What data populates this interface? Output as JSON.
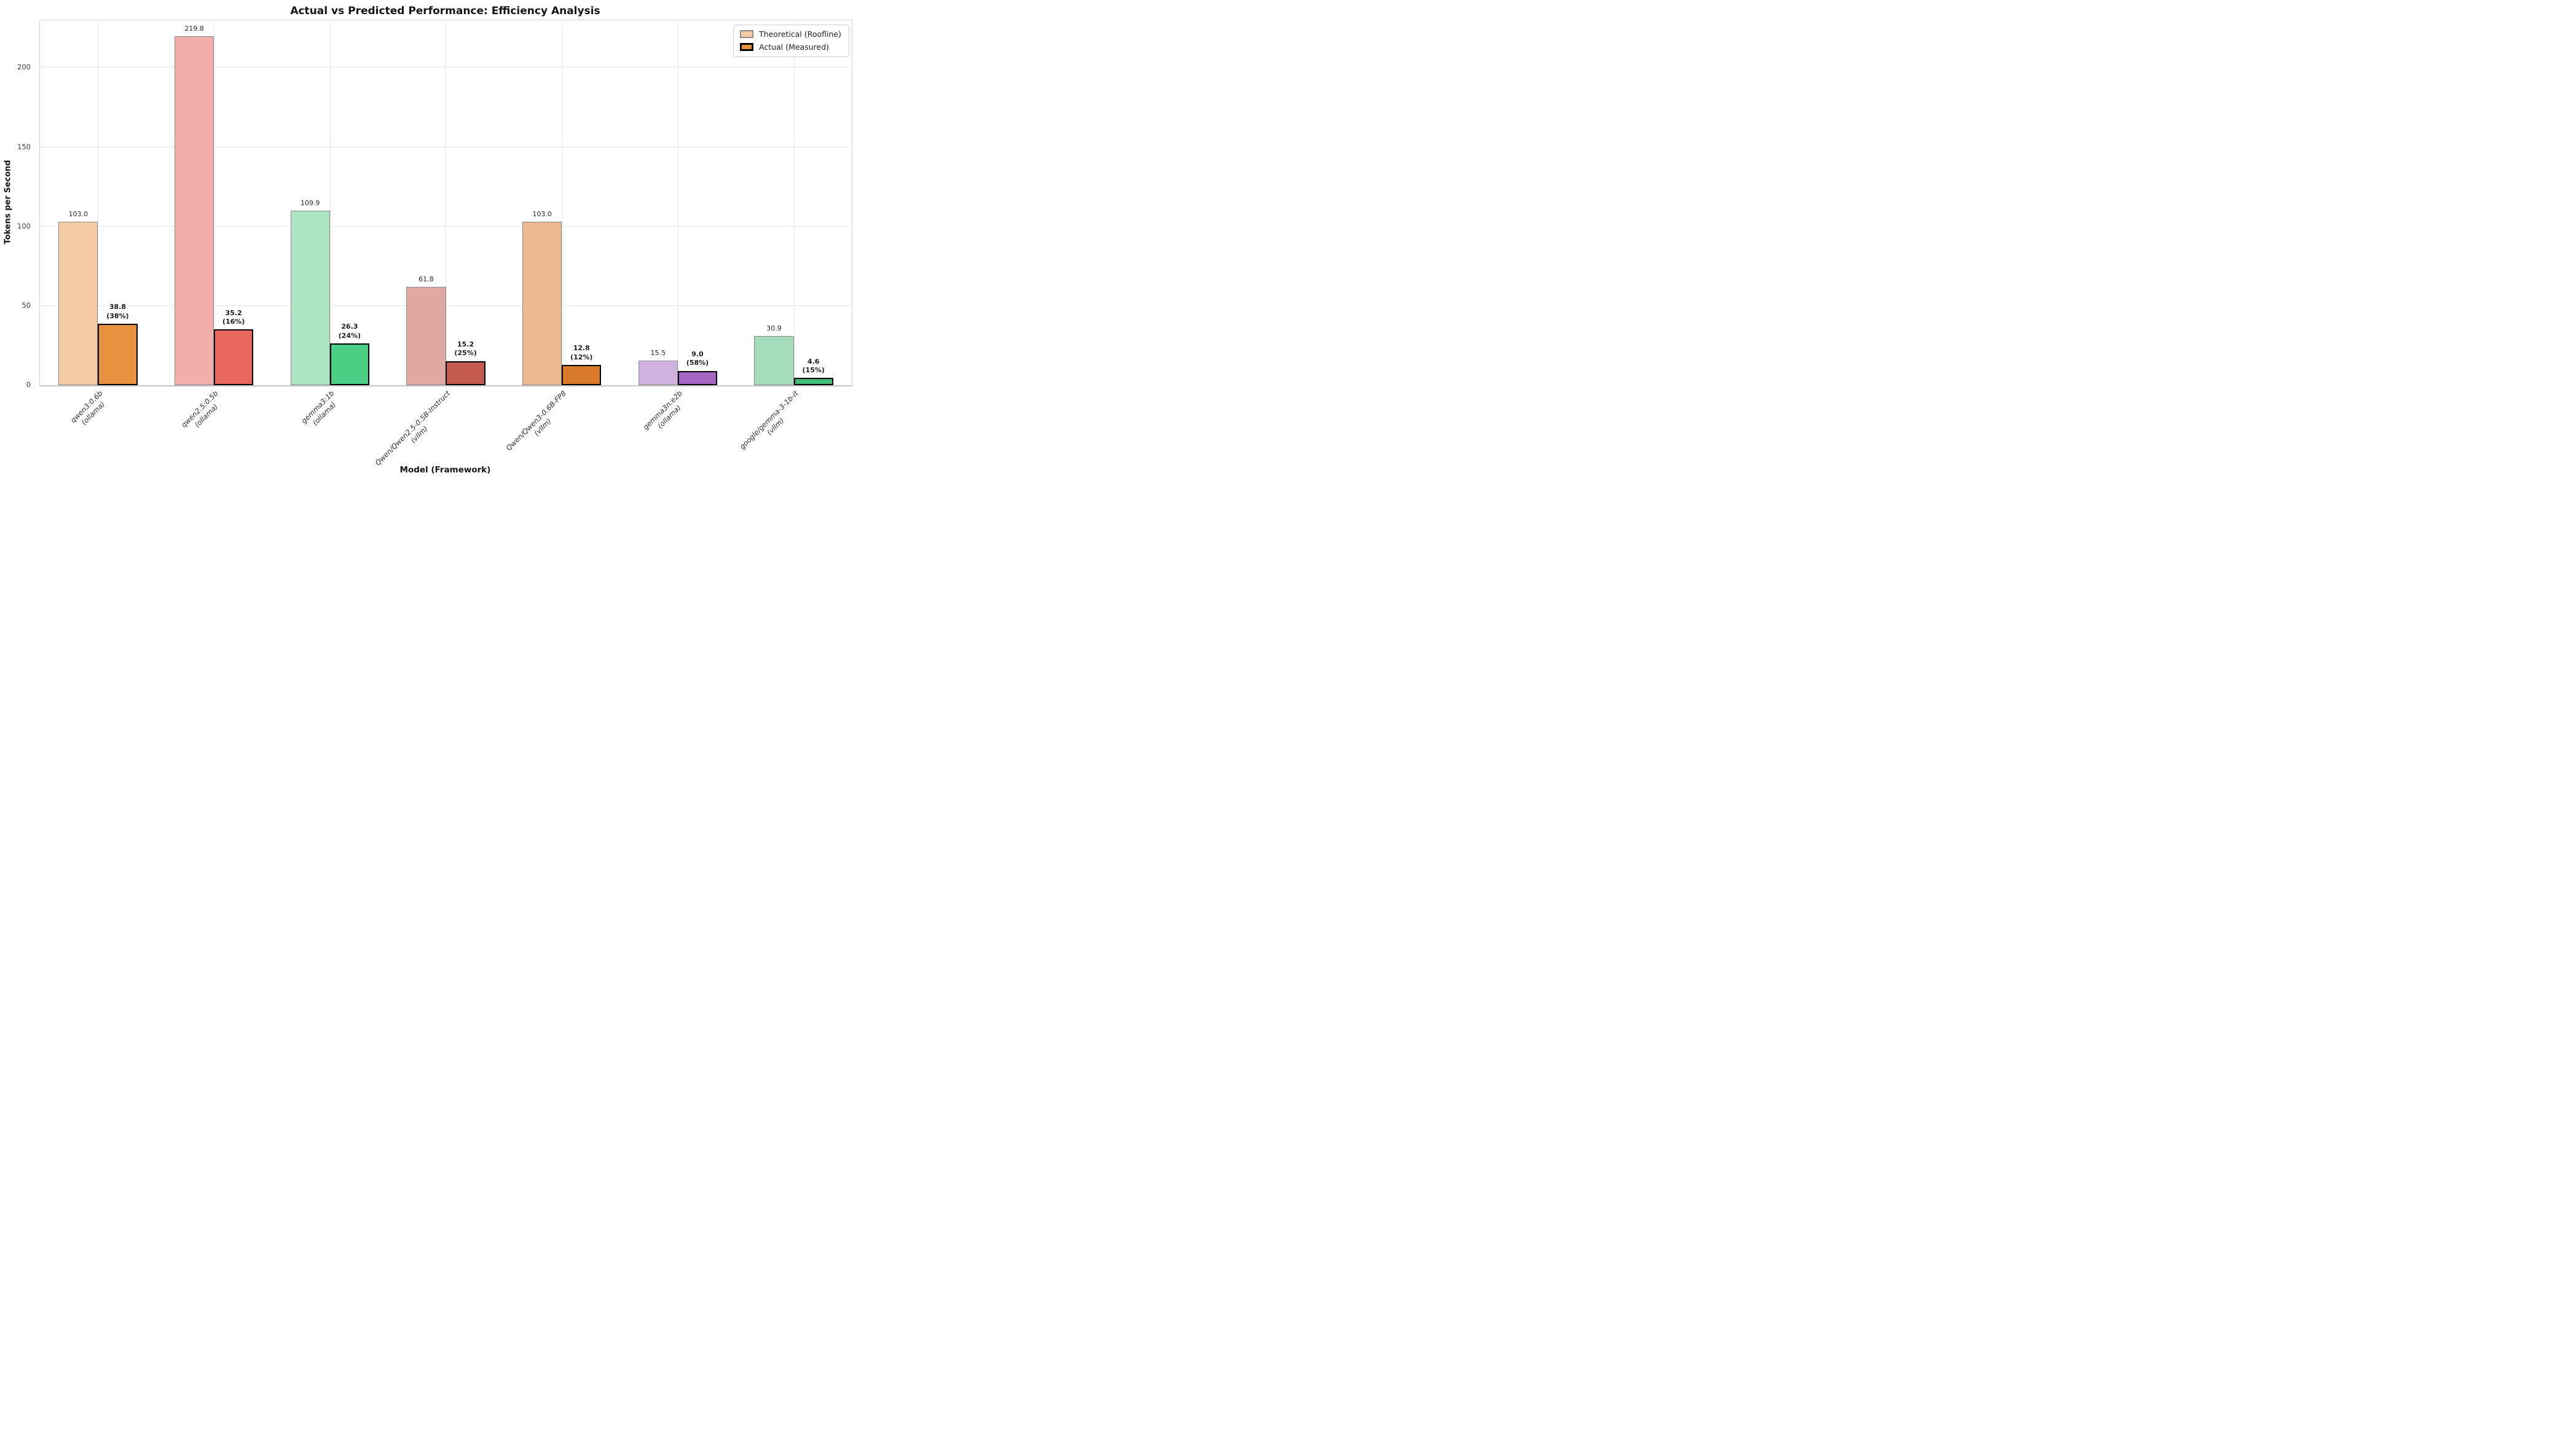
{
  "chart_data": {
    "type": "bar",
    "title": "Actual vs Predicted Performance: Efficiency Analysis",
    "xlabel": "Model (Framework)",
    "ylabel": "Tokens per Second",
    "ylim": [
      0,
      230
    ],
    "yticks": [
      0,
      50,
      100,
      150,
      200
    ],
    "grid": true,
    "legend_position": "upper right",
    "legend": {
      "theoretical_label": "Theoretical (Roofline)",
      "actual_label": "Actual (Measured)"
    },
    "series": [
      {
        "name": "Theoretical (Roofline)",
        "values": [
          103.0,
          219.8,
          109.9,
          61.8,
          103.0,
          15.5,
          30.9
        ]
      },
      {
        "name": "Actual (Measured)",
        "values": [
          38.8,
          35.2,
          26.3,
          15.2,
          12.8,
          9.0,
          4.6
        ]
      }
    ],
    "groups": [
      {
        "model": "qwen3:0.6b",
        "framework": "(ollama)",
        "theoretical": 103.0,
        "theoretical_label": "103.0",
        "actual": 38.8,
        "actual_label": "38.8",
        "efficiency_label": "(38%)",
        "theo_color": "#F5CBA4",
        "actual_color": "#E8913F"
      },
      {
        "model": "qwen2.5:0.5b",
        "framework": "(ollama)",
        "theoretical": 219.8,
        "theoretical_label": "219.8",
        "actual": 35.2,
        "actual_label": "35.2",
        "efficiency_label": "(16%)",
        "theo_color": "#F2AFA9",
        "actual_color": "#E8695C"
      },
      {
        "model": "gemma3:1b",
        "framework": "(ollama)",
        "theoretical": 109.9,
        "theoretical_label": "109.9",
        "actual": 26.3,
        "actual_label": "26.3",
        "efficiency_label": "(24%)",
        "theo_color": "#ABE5C3",
        "actual_color": "#4ACF85"
      },
      {
        "model": "Qwen/Qwen2.5-0.5B-Instruct",
        "framework": "(vllm)",
        "theoretical": 61.8,
        "theoretical_label": "61.8",
        "actual": 15.2,
        "actual_label": "15.2",
        "efficiency_label": "(25%)",
        "theo_color": "#DFA8A3",
        "actual_color": "#C45B51"
      },
      {
        "model": "Qwen/Qwen3-0.6B-FP8",
        "framework": "(vllm)",
        "theoretical": 103.0,
        "theoretical_label": "103.0",
        "actual": 12.8,
        "actual_label": "12.8",
        "efficiency_label": "(12%)",
        "theo_color": "#EBB88F",
        "actual_color": "#D97A2B"
      },
      {
        "model": "gemma3n:e2b",
        "framework": "(ollama)",
        "theoretical": 15.5,
        "theoretical_label": "15.5",
        "actual": 9.0,
        "actual_label": "9.0",
        "efficiency_label": "(58%)",
        "theo_color": "#CFB2DF",
        "actual_color": "#A667C4"
      },
      {
        "model": "google/gemma-3-1b-it",
        "framework": "(vllm)",
        "theoretical": 30.9,
        "theoretical_label": "30.9",
        "actual": 4.6,
        "actual_label": "4.6",
        "efficiency_label": "(15%)",
        "theo_color": "#A5DCBB",
        "actual_color": "#43BA78"
      }
    ],
    "colors": {
      "theoretical_edge": "#8a8a8a",
      "actual_edge": "#000000",
      "gridline": "#e6e6e6",
      "spine": "#cccccc"
    }
  }
}
